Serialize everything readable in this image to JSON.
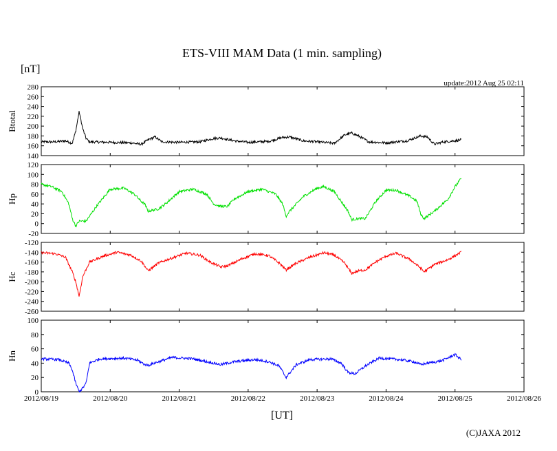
{
  "title": "ETS-VIII MAM Data (1 min. sampling)",
  "unit_label": "[nT]",
  "update_text": "update:2012 Aug 25 02:11",
  "xlabel": "[UT]",
  "copyright": "(C)JAXA 2012",
  "chart_data": {
    "type": "line",
    "x_range_days": [
      0,
      7
    ],
    "x_ticks": [
      "2012/08/19",
      "2012/08/20",
      "2012/08/21",
      "2012/08/22",
      "2012/08/23",
      "2012/08/24",
      "2012/08/25",
      "2012/08/26"
    ],
    "data_end_day": 6.09,
    "panels": [
      {
        "name": "Btotal",
        "color": "#000000",
        "ylim": [
          140,
          280
        ],
        "y_ticks": [
          140,
          160,
          180,
          200,
          220,
          240,
          260,
          280
        ],
        "points": [
          [
            0.0,
            168
          ],
          [
            0.2,
            168
          ],
          [
            0.35,
            170
          ],
          [
            0.45,
            165
          ],
          [
            0.5,
            190
          ],
          [
            0.55,
            230
          ],
          [
            0.6,
            195
          ],
          [
            0.65,
            175
          ],
          [
            0.7,
            168
          ],
          [
            1.0,
            167
          ],
          [
            1.3,
            166
          ],
          [
            1.45,
            163
          ],
          [
            1.55,
            172
          ],
          [
            1.65,
            178
          ],
          [
            1.75,
            168
          ],
          [
            2.0,
            167
          ],
          [
            2.3,
            168
          ],
          [
            2.5,
            175
          ],
          [
            2.6,
            176
          ],
          [
            2.8,
            170
          ],
          [
            3.0,
            167
          ],
          [
            3.3,
            169
          ],
          [
            3.5,
            177
          ],
          [
            3.6,
            178
          ],
          [
            3.8,
            170
          ],
          [
            4.0,
            168
          ],
          [
            4.25,
            165
          ],
          [
            4.4,
            182
          ],
          [
            4.5,
            186
          ],
          [
            4.6,
            180
          ],
          [
            4.75,
            168
          ],
          [
            5.0,
            166
          ],
          [
            5.3,
            170
          ],
          [
            5.5,
            180
          ],
          [
            5.6,
            178
          ],
          [
            5.7,
            163
          ],
          [
            5.8,
            167
          ],
          [
            6.09,
            172
          ]
        ]
      },
      {
        "name": "Hp",
        "color": "#00e000",
        "ylim": [
          -20,
          120
        ],
        "y_ticks": [
          -20,
          0,
          20,
          40,
          60,
          80,
          100,
          120
        ],
        "points": [
          [
            0.0,
            80
          ],
          [
            0.15,
            75
          ],
          [
            0.3,
            65
          ],
          [
            0.4,
            40
          ],
          [
            0.45,
            10
          ],
          [
            0.5,
            -5
          ],
          [
            0.55,
            5
          ],
          [
            0.65,
            5
          ],
          [
            0.8,
            35
          ],
          [
            1.0,
            70
          ],
          [
            1.2,
            72
          ],
          [
            1.35,
            60
          ],
          [
            1.45,
            45
          ],
          [
            1.5,
            40
          ],
          [
            1.55,
            25
          ],
          [
            1.7,
            30
          ],
          [
            1.8,
            40
          ],
          [
            2.0,
            65
          ],
          [
            2.2,
            70
          ],
          [
            2.4,
            60
          ],
          [
            2.5,
            40
          ],
          [
            2.6,
            35
          ],
          [
            2.7,
            35
          ],
          [
            2.8,
            50
          ],
          [
            3.0,
            65
          ],
          [
            3.2,
            70
          ],
          [
            3.4,
            60
          ],
          [
            3.5,
            40
          ],
          [
            3.55,
            15
          ],
          [
            3.6,
            25
          ],
          [
            3.8,
            55
          ],
          [
            4.0,
            72
          ],
          [
            4.1,
            75
          ],
          [
            4.25,
            65
          ],
          [
            4.35,
            45
          ],
          [
            4.45,
            25
          ],
          [
            4.5,
            8
          ],
          [
            4.6,
            10
          ],
          [
            4.7,
            10
          ],
          [
            4.85,
            45
          ],
          [
            5.0,
            68
          ],
          [
            5.15,
            68
          ],
          [
            5.35,
            55
          ],
          [
            5.45,
            45
          ],
          [
            5.5,
            20
          ],
          [
            5.55,
            10
          ],
          [
            5.7,
            25
          ],
          [
            5.9,
            50
          ],
          [
            6.0,
            75
          ],
          [
            6.09,
            92
          ]
        ]
      },
      {
        "name": "Hc",
        "color": "#ff0000",
        "ylim": [
          -260,
          -120
        ],
        "y_ticks": [
          -260,
          -240,
          -220,
          -200,
          -180,
          -160,
          -140,
          -120
        ],
        "points": [
          [
            0.0,
            -141
          ],
          [
            0.2,
            -143
          ],
          [
            0.35,
            -150
          ],
          [
            0.45,
            -180
          ],
          [
            0.5,
            -200
          ],
          [
            0.55,
            -230
          ],
          [
            0.6,
            -190
          ],
          [
            0.7,
            -160
          ],
          [
            0.9,
            -148
          ],
          [
            1.1,
            -140
          ],
          [
            1.3,
            -146
          ],
          [
            1.45,
            -158
          ],
          [
            1.55,
            -178
          ],
          [
            1.7,
            -162
          ],
          [
            1.85,
            -154
          ],
          [
            2.1,
            -142
          ],
          [
            2.3,
            -146
          ],
          [
            2.45,
            -160
          ],
          [
            2.6,
            -170
          ],
          [
            2.7,
            -168
          ],
          [
            2.9,
            -154
          ],
          [
            3.1,
            -143
          ],
          [
            3.3,
            -147
          ],
          [
            3.45,
            -162
          ],
          [
            3.55,
            -176
          ],
          [
            3.7,
            -162
          ],
          [
            3.9,
            -150
          ],
          [
            4.1,
            -141
          ],
          [
            4.25,
            -146
          ],
          [
            4.4,
            -162
          ],
          [
            4.5,
            -183
          ],
          [
            4.6,
            -178
          ],
          [
            4.7,
            -176
          ],
          [
            4.85,
            -160
          ],
          [
            5.0,
            -148
          ],
          [
            5.15,
            -142
          ],
          [
            5.35,
            -155
          ],
          [
            5.5,
            -172
          ],
          [
            5.55,
            -180
          ],
          [
            5.7,
            -165
          ],
          [
            5.9,
            -155
          ],
          [
            6.09,
            -140
          ]
        ]
      },
      {
        "name": "Hn",
        "color": "#0000ff",
        "ylim": [
          0,
          100
        ],
        "y_ticks": [
          0,
          20,
          40,
          60,
          80,
          100
        ],
        "points": [
          [
            0.0,
            46
          ],
          [
            0.25,
            45
          ],
          [
            0.4,
            40
          ],
          [
            0.45,
            30
          ],
          [
            0.5,
            12
          ],
          [
            0.55,
            0
          ],
          [
            0.6,
            5
          ],
          [
            0.65,
            12
          ],
          [
            0.7,
            40
          ],
          [
            0.85,
            46
          ],
          [
            1.2,
            47
          ],
          [
            1.4,
            44
          ],
          [
            1.5,
            38
          ],
          [
            1.55,
            37
          ],
          [
            1.7,
            42
          ],
          [
            1.9,
            48
          ],
          [
            2.2,
            46
          ],
          [
            2.4,
            42
          ],
          [
            2.6,
            38
          ],
          [
            2.8,
            42
          ],
          [
            3.1,
            45
          ],
          [
            3.3,
            42
          ],
          [
            3.45,
            36
          ],
          [
            3.55,
            20
          ],
          [
            3.7,
            38
          ],
          [
            3.9,
            45
          ],
          [
            4.2,
            46
          ],
          [
            4.35,
            40
          ],
          [
            4.45,
            27
          ],
          [
            4.55,
            25
          ],
          [
            4.7,
            36
          ],
          [
            4.9,
            47
          ],
          [
            5.2,
            45
          ],
          [
            5.4,
            42
          ],
          [
            5.5,
            38
          ],
          [
            5.6,
            40
          ],
          [
            5.8,
            43
          ],
          [
            6.0,
            52
          ],
          [
            6.09,
            45
          ]
        ]
      }
    ]
  }
}
